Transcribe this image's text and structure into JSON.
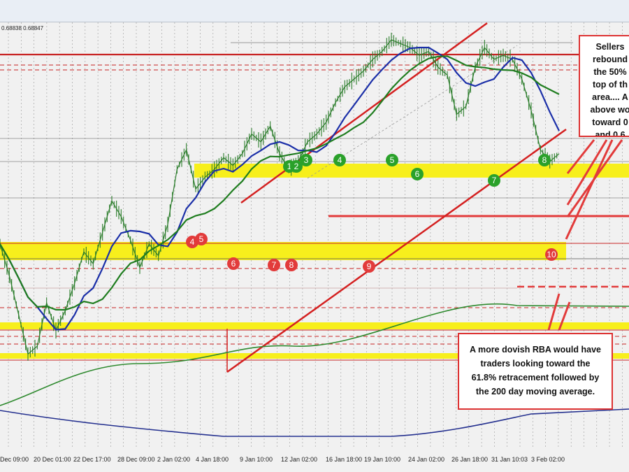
{
  "price_readout": "0.68838 0.68847",
  "notes": {
    "sellers": "Sellers\nrebound\nthe 50%\ntop of th\narea.... A\nabove wo\ntoward 0\nand 0.6",
    "rba": "A more dovish RBA would have\ntraders looking toward the\n61.8% retracement followed by\nthe 200 day moving average."
  },
  "colors": {
    "background": "#f1f1f1",
    "candle": "#2c7d2c",
    "ma_blue": "#1b2fa8",
    "ma_green": "#1f7d1f",
    "ma_long_green": "#2f8a2f",
    "ma_long_blue": "#24308f",
    "channel_red": "#d42020",
    "zone_yellow": "#f7ef1c",
    "marker_green": "#2aa12a",
    "marker_red": "#e23b3b"
  },
  "chart_data": {
    "type": "line",
    "instrument_readout": "0.68838 0.68847",
    "x_tick_labels": [
      "Dec 09:00",
      "20 Dec 01:00",
      "22 Dec 17:00",
      "28 Dec 09:00",
      "2 Jan 02:00",
      "4 Jan 18:00",
      "9 Jan 10:00",
      "12 Jan 02:00",
      "16 Jan 18:00",
      "19 Jan 10:00",
      "24 Jan 02:00",
      "26 Jan 18:00",
      "31 Jan 10:03",
      "3 Feb 02:00"
    ],
    "series": [
      {
        "values": [
          0.5,
          0.42,
          0.32,
          0.22,
          0.24,
          0.35,
          0.28,
          0.33,
          0.4,
          0.48,
          0.45,
          0.53,
          0.61,
          0.57,
          0.51,
          0.44,
          0.5,
          0.47,
          0.55,
          0.69,
          0.74,
          0.64,
          0.67,
          0.69,
          0.72,
          0.7,
          0.73,
          0.78,
          0.76,
          0.8,
          0.73,
          0.69,
          0.71,
          0.76,
          0.78,
          0.81,
          0.86,
          0.9,
          0.92,
          0.94,
          0.97,
          0.99,
          1.02,
          1.01,
          1.0,
          0.98,
          0.99,
          0.95,
          0.93,
          0.83,
          0.85,
          0.95,
          1.0,
          0.97,
          0.98,
          0.97,
          0.92,
          0.84,
          0.74,
          0.71,
          0.73
        ]
      }
    ],
    "markers": [
      {
        "label": "4",
        "color": "red"
      },
      {
        "label": "5",
        "color": "red"
      },
      {
        "label": "6",
        "color": "red"
      },
      {
        "label": "7",
        "color": "red"
      },
      {
        "label": "8",
        "color": "red"
      },
      {
        "label": "1",
        "color": "green"
      },
      {
        "label": "2",
        "color": "green"
      },
      {
        "label": "3",
        "color": "green"
      },
      {
        "label": "4",
        "color": "green"
      },
      {
        "label": "5",
        "color": "green"
      },
      {
        "label": "6",
        "color": "green"
      },
      {
        "label": "7",
        "color": "green"
      },
      {
        "label": "8",
        "color": "green"
      },
      {
        "label": "9",
        "color": "red"
      },
      {
        "label": "10",
        "color": "red"
      }
    ],
    "grid": true,
    "legend": "none"
  }
}
